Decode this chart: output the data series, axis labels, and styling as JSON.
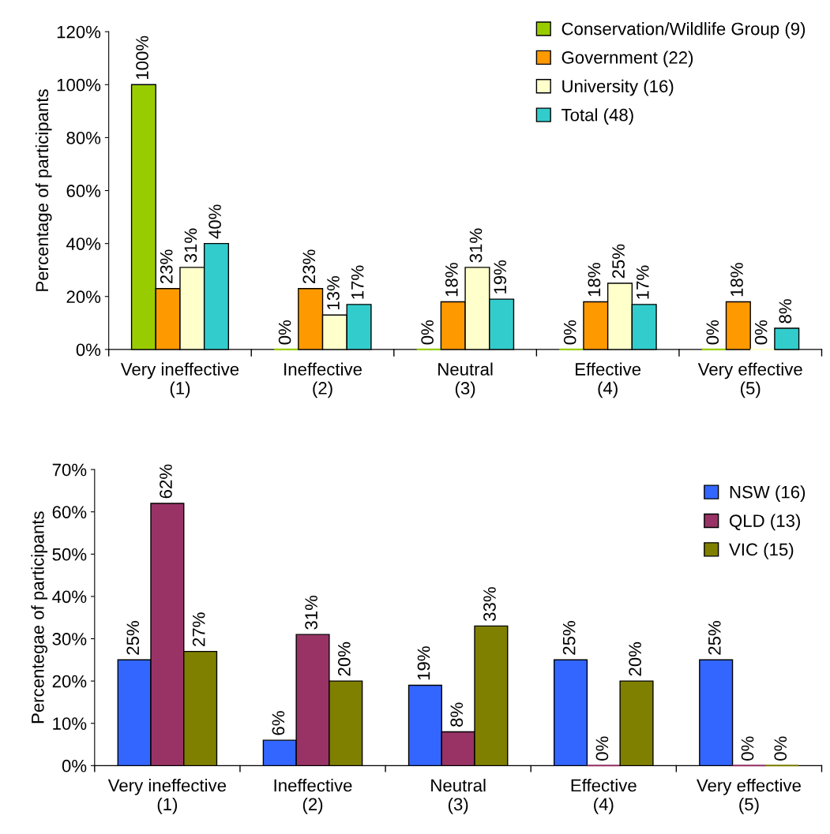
{
  "chart_data": [
    {
      "type": "bar",
      "ylabel": "Percentage of participants",
      "categories": [
        "Very ineffective\n(1)",
        "Ineffective\n(2)",
        "Neutral\n(3)",
        "Effective\n(4)",
        "Very effective\n(5)"
      ],
      "series": [
        {
          "name": "Conservation/Wildlife Group (9)",
          "color": "#99cc00",
          "values": [
            100,
            0,
            0,
            0,
            0
          ],
          "value_labels": [
            "100%",
            "0%",
            "0%",
            "0%",
            "0%"
          ]
        },
        {
          "name": "Government (22)",
          "color": "#ff9900",
          "values": [
            23,
            23,
            18,
            18,
            18
          ],
          "value_labels": [
            "23%",
            "23%",
            "18%",
            "18%",
            "18%"
          ]
        },
        {
          "name": "University (16)",
          "color": "#ffffcc",
          "values": [
            31,
            13,
            31,
            25,
            0
          ],
          "value_labels": [
            "31%",
            "13%",
            "31%",
            "25%",
            "0%"
          ]
        },
        {
          "name": "Total (48)",
          "color": "#33cccc",
          "values": [
            40,
            17,
            19,
            17,
            8
          ],
          "value_labels": [
            "40%",
            "17%",
            "19%",
            "17%",
            "8%"
          ]
        }
      ],
      "ylim": [
        0,
        120
      ],
      "yticks": [
        {
          "value": 0,
          "label": "0%"
        },
        {
          "value": 20,
          "label": "20%"
        },
        {
          "value": 40,
          "label": "40%"
        },
        {
          "value": 60,
          "label": "60%"
        },
        {
          "value": 80,
          "label": "80%"
        },
        {
          "value": 100,
          "label": "100%"
        },
        {
          "value": 120,
          "label": "120%"
        }
      ],
      "grid": false,
      "legend": "top right"
    },
    {
      "type": "bar",
      "ylabel": "Percentegae of participants",
      "categories": [
        "Very ineffective\n(1)",
        "Ineffective\n(2)",
        "Neutral\n(3)",
        "Effective\n(4)",
        "Very effective\n(5)"
      ],
      "series": [
        {
          "name": "NSW (16)",
          "color": "#3366ff",
          "values": [
            25,
            6,
            19,
            25,
            25
          ],
          "value_labels": [
            "25%",
            "6%",
            "19%",
            "25%",
            "25%"
          ]
        },
        {
          "name": "QLD (13)",
          "color": "#993366",
          "values": [
            62,
            31,
            8,
            0,
            0
          ],
          "value_labels": [
            "62%",
            "31%",
            "8%",
            "0%",
            "0%"
          ]
        },
        {
          "name": "VIC (15)",
          "color": "#808000",
          "values": [
            27,
            20,
            33,
            20,
            0
          ],
          "value_labels": [
            "27%",
            "20%",
            "33%",
            "20%",
            "0%"
          ]
        }
      ],
      "ylim": [
        0,
        70
      ],
      "yticks": [
        {
          "value": 0,
          "label": "0%"
        },
        {
          "value": 10,
          "label": "10%"
        },
        {
          "value": 20,
          "label": "20%"
        },
        {
          "value": 30,
          "label": "30%"
        },
        {
          "value": 40,
          "label": "40%"
        },
        {
          "value": 50,
          "label": "50%"
        },
        {
          "value": 60,
          "label": "60%"
        },
        {
          "value": 70,
          "label": "70%"
        }
      ],
      "grid": false,
      "legend": "top right"
    }
  ]
}
